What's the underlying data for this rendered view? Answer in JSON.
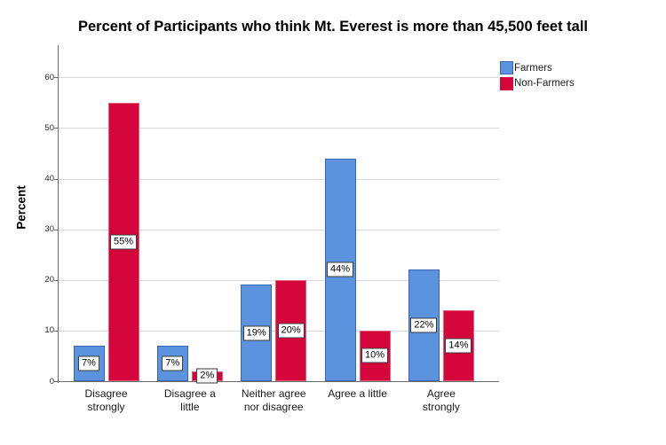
{
  "chart_data": {
    "type": "bar",
    "title": "Percent of Participants who think Mt. Everest is more than 45,500 feet tall",
    "ylabel": "Percent",
    "xlabel": "",
    "categories": [
      "Disagree strongly",
      "Disagree a little",
      "Neither agree nor disagree",
      "Agree a little",
      "Agree strongly"
    ],
    "category_display_lines": [
      [
        "Disagree",
        "strongly"
      ],
      [
        "Disagree a",
        "little"
      ],
      [
        "Neither agree",
        "nor disagree"
      ],
      [
        "Agree a little"
      ],
      [
        "Agree",
        "strongly"
      ]
    ],
    "series": [
      {
        "name": "Farmers",
        "values": [
          7,
          7,
          19,
          44,
          22
        ],
        "value_labels": [
          "7%",
          "7%",
          "19%",
          "44%",
          "22%"
        ],
        "fill_color": "#5B93DE",
        "border_color": "#3965B4"
      },
      {
        "name": "Non-Farmers",
        "values": [
          55,
          2,
          20,
          10,
          14
        ],
        "value_labels": [
          "55%",
          "2%",
          "20%",
          "10%",
          "14%"
        ],
        "fill_color": "#D4063C",
        "border_color": "#E05C77"
      }
    ],
    "yticks": [
      0,
      10,
      20,
      30,
      40,
      50,
      60
    ],
    "ylim": [
      0,
      66.4
    ],
    "grid": true,
    "legend_position": "top-right",
    "gridline_color": "#D9D9D9",
    "axis_color": "#6B6B6B",
    "value_label_style": "white box with dark border, centered at bar mid-height"
  }
}
